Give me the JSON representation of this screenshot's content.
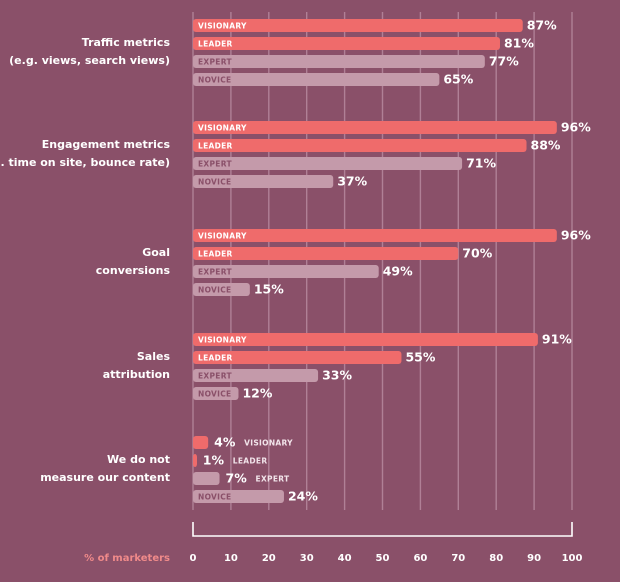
{
  "chart_data": {
    "type": "bar",
    "orientation": "horizontal",
    "series_names": [
      "VISIONARY",
      "LEADER",
      "EXPERT",
      "NOVICE"
    ],
    "groups": [
      {
        "label_lines": [
          "Traffic metrics",
          "(e.g. views, search views)"
        ],
        "values": [
          87,
          81,
          77,
          65
        ]
      },
      {
        "label_lines": [
          "Engagement metrics",
          "(e.g. time on site, bounce rate)"
        ],
        "values": [
          96,
          88,
          71,
          37
        ]
      },
      {
        "label_lines": [
          "Goal",
          "conversions"
        ],
        "values": [
          96,
          70,
          49,
          15
        ]
      },
      {
        "label_lines": [
          "Sales",
          "attribution"
        ],
        "values": [
          91,
          55,
          33,
          12
        ]
      },
      {
        "label_lines": [
          "We do not",
          "measure our content"
        ],
        "values": [
          4,
          1,
          7,
          24
        ]
      }
    ],
    "xlabel": "% of marketers",
    "xlim": [
      0,
      100
    ],
    "xticks": [
      0,
      10,
      20,
      30,
      40,
      50,
      60,
      70,
      80,
      90,
      100
    ],
    "grid": true,
    "legend": "none"
  },
  "colors": {
    "background": "#8a5069",
    "strong_bar": "#ef6b6b",
    "soft_bar": "#c49aaa",
    "grid": "#b08096",
    "axis_title": "#f08a8a"
  }
}
